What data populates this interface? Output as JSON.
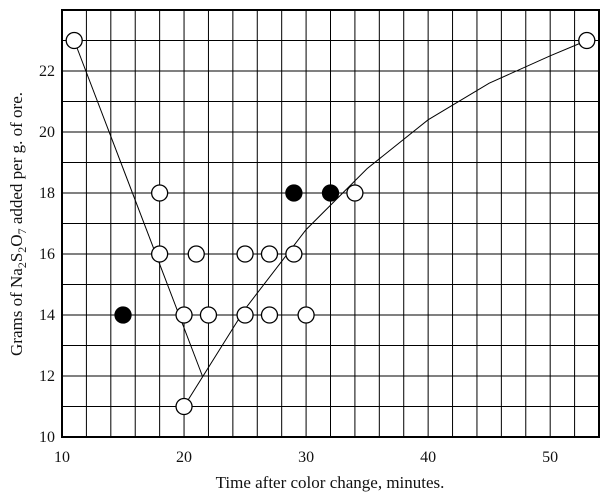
{
  "chart_data": {
    "type": "scatter",
    "title": "",
    "xlabel": "Time after color change, minutes.",
    "ylabel_parts": [
      "Grams of Na",
      "2",
      "S",
      "2",
      "O",
      "7",
      " added per g. of ore."
    ],
    "xlim": [
      10,
      54
    ],
    "ylim": [
      10,
      24
    ],
    "x_ticks": [
      10,
      20,
      30,
      40,
      50
    ],
    "y_ticks": [
      10,
      12,
      14,
      16,
      18,
      20,
      22
    ],
    "grid": true,
    "series": [
      {
        "marker": "open-circle",
        "points": [
          [
            11,
            23
          ],
          [
            18,
            18
          ],
          [
            18,
            16
          ],
          [
            21,
            16
          ],
          [
            25,
            16
          ],
          [
            27,
            16
          ],
          [
            29,
            16
          ],
          [
            20,
            14
          ],
          [
            22,
            14
          ],
          [
            25,
            14
          ],
          [
            27,
            14
          ],
          [
            30,
            14
          ],
          [
            34,
            18
          ],
          [
            20,
            11
          ],
          [
            53,
            23
          ]
        ]
      },
      {
        "marker": "filled-circle",
        "points": [
          [
            15,
            14
          ],
          [
            29,
            18
          ],
          [
            32,
            18
          ]
        ]
      }
    ],
    "curves": [
      {
        "points": [
          [
            11,
            23
          ],
          [
            21.5,
            12
          ]
        ]
      },
      {
        "points": [
          [
            20,
            11
          ],
          [
            25,
            14.2
          ],
          [
            30,
            16.8
          ],
          [
            35,
            18.8
          ],
          [
            40,
            20.4
          ],
          [
            45,
            21.6
          ],
          [
            50,
            22.5
          ],
          [
            53,
            23
          ]
        ]
      }
    ]
  }
}
